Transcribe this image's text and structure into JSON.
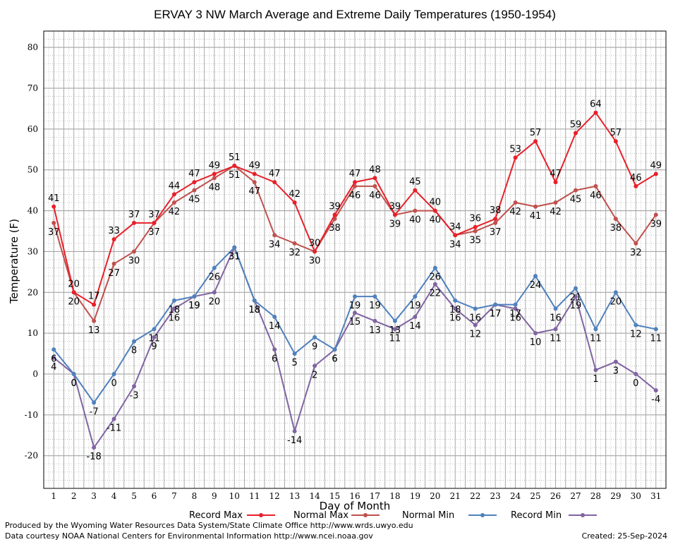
{
  "chart_data": {
    "type": "line",
    "title": "ERVAY 3 NW March Average and Extreme Daily Temperatures (1950-1954)",
    "xlabel": "Day of Month",
    "ylabel": "Temperature (F)",
    "ylim": [
      -28,
      84
    ],
    "yticks": [
      -20,
      -10,
      0,
      10,
      20,
      30,
      40,
      50,
      60,
      70,
      80
    ],
    "categories": [
      "1",
      "2",
      "3",
      "4",
      "5",
      "6",
      "7",
      "8",
      "9",
      "10",
      "11",
      "12",
      "13",
      "14",
      "15",
      "16",
      "17",
      "18",
      "19",
      "20",
      "21",
      "22",
      "23",
      "24",
      "25",
      "26",
      "27",
      "28",
      "29",
      "30",
      "31"
    ],
    "grid": true,
    "legend_position": "bottom",
    "series": [
      {
        "name": "Record Max",
        "color": "#e8202a",
        "label_pos": "above",
        "values": [
          41,
          20,
          17,
          33,
          37,
          37,
          44,
          47,
          49,
          51,
          49,
          47,
          42,
          30,
          39,
          47,
          48,
          39,
          45,
          40,
          34,
          36,
          38,
          53,
          57,
          47,
          59,
          64,
          57,
          46,
          49
        ]
      },
      {
        "name": "Normal Max",
        "color": "#c0504d",
        "label_pos": "below",
        "values": [
          37,
          20,
          13,
          27,
          30,
          37,
          42,
          45,
          48,
          51,
          47,
          34,
          32,
          30,
          38,
          46,
          46,
          39,
          40,
          40,
          34,
          35,
          37,
          42,
          41,
          42,
          45,
          46,
          38,
          32,
          39
        ]
      },
      {
        "name": "Normal Min",
        "color": "#4f81bd",
        "label_pos": "below",
        "values": [
          6,
          0,
          -7,
          0,
          8,
          11,
          18,
          19,
          26,
          31,
          18,
          14,
          5,
          9,
          6,
          19,
          19,
          13,
          19,
          26,
          18,
          16,
          17,
          17,
          24,
          16,
          21,
          11,
          20,
          12,
          11
        ]
      },
      {
        "name": "Record Min",
        "color": "#8064a2",
        "label_pos": "below",
        "values": [
          4,
          0,
          -18,
          -11,
          -3,
          9,
          16,
          19,
          20,
          31,
          18,
          6,
          -14,
          2,
          6,
          15,
          13,
          11,
          14,
          22,
          16,
          12,
          17,
          16,
          10,
          11,
          19,
          1,
          3,
          0,
          -4
        ]
      }
    ]
  },
  "footer": {
    "produced_by": "Produced by the Wyoming Water Resources Data System/State Climate Office http://www.wrds.uwyo.edu",
    "data_courtesy": "Data courtesy NOAA National Centers for Environmental Information http://www.ncei.noaa.gov",
    "created": "Created:  25-Sep-2024"
  }
}
